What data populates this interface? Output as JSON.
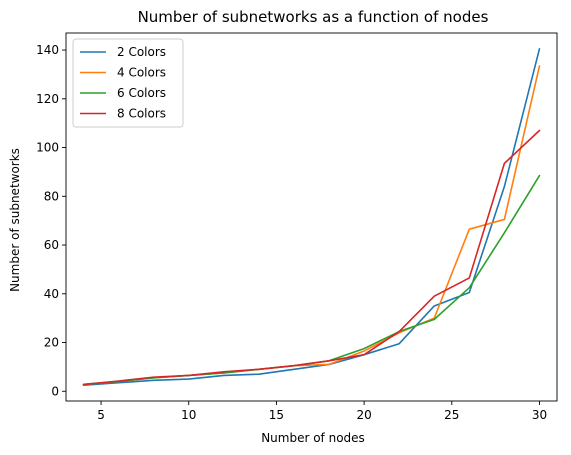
{
  "chart_data": {
    "type": "line",
    "title": "Number of subnetworks as a function of nodes",
    "xlabel": "Number of nodes",
    "ylabel": "Number of subnetworks",
    "xlim": [
      3,
      31
    ],
    "ylim": [
      -4,
      147
    ],
    "xticks": [
      5,
      10,
      15,
      20,
      25,
      30
    ],
    "yticks": [
      0,
      20,
      40,
      60,
      80,
      100,
      120,
      140
    ],
    "grid": false,
    "legend_position": "top-left",
    "x": [
      4,
      6,
      8,
      10,
      12,
      14,
      16,
      18,
      20,
      22,
      24,
      26,
      28,
      30
    ],
    "series": [
      {
        "name": "2 Colors",
        "color": "#1f77b4",
        "values": [
          2.5,
          3.5,
          4.5,
          5,
          6.5,
          7,
          9,
          11,
          15,
          19.5,
          35,
          40.5,
          84,
          140.5
        ]
      },
      {
        "name": "4 Colors",
        "color": "#ff7f0e",
        "values": [
          2.8,
          4,
          5.5,
          6.5,
          7.5,
          9,
          10.5,
          11,
          16.5,
          24,
          30,
          66.5,
          70.5,
          133.5
        ]
      },
      {
        "name": "6 Colors",
        "color": "#2ca02c",
        "values": [
          2.8,
          4,
          5.5,
          6.5,
          7.5,
          9,
          10.5,
          12.5,
          17.5,
          24.5,
          29.5,
          42.5,
          65,
          88.5
        ]
      },
      {
        "name": "8 Colors",
        "color": "#d62728",
        "values": [
          2.8,
          4.2,
          5.8,
          6.5,
          8,
          9,
          10.5,
          12.5,
          15,
          24.5,
          39,
          46.5,
          93.5,
          107
        ]
      }
    ]
  }
}
